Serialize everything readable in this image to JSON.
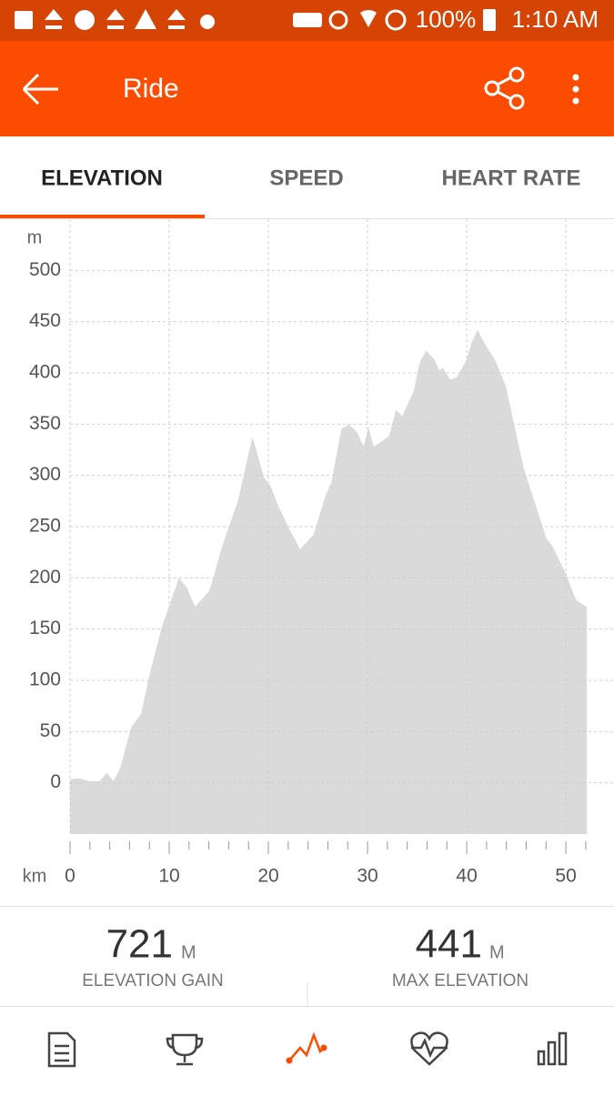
{
  "status_bar": {
    "battery": "100%",
    "time": "1:10 AM"
  },
  "app_bar": {
    "title": "Ride"
  },
  "tabs": [
    "ELEVATION",
    "SPEED",
    "HEART RATE"
  ],
  "chart_data": {
    "type": "area",
    "y_unit": "m",
    "x_unit": "km",
    "color": "#dadada",
    "x": [
      0,
      1,
      2,
      3,
      3.7,
      4.4,
      5.1,
      6.2,
      7.2,
      8.1,
      9.3,
      11,
      11.7,
      12.6,
      14.1,
      15.4,
      17,
      18.4,
      19.5,
      20.2,
      20.9,
      22.1,
      23.2,
      24.6,
      25.8,
      26.4,
      27.4,
      28.1,
      28.9,
      29.6,
      30.1,
      30.6,
      32.2,
      32.9,
      33.5,
      34.7,
      35.3,
      35.9,
      36.7,
      37.2,
      37.6,
      38.3,
      39,
      39.9,
      40.6,
      41.1,
      41.8,
      42.8,
      43.9,
      44.8,
      45.7,
      46.9,
      48,
      48.6,
      49.8,
      51,
      52.1
    ],
    "values": [
      3,
      4,
      1,
      1,
      9,
      1,
      14,
      54,
      67,
      107,
      152,
      199,
      191,
      171,
      187,
      231,
      276,
      336,
      298,
      289,
      271,
      247,
      227,
      242,
      280,
      293,
      345,
      349,
      342,
      327,
      345,
      327,
      338,
      363,
      357,
      382,
      410,
      421,
      413,
      402,
      404,
      393,
      395,
      410,
      431,
      441,
      428,
      413,
      387,
      347,
      307,
      271,
      238,
      231,
      207,
      178,
      171
    ],
    "xlim": [
      0,
      52.1
    ],
    "ylim": [
      -50,
      550
    ],
    "xticks": [
      0,
      10,
      20,
      30,
      40,
      50
    ],
    "xminorticks": [
      2,
      4,
      6,
      8,
      12,
      14,
      16,
      18,
      22,
      24,
      26,
      28,
      32,
      34,
      36,
      38,
      42,
      44,
      46,
      48,
      52
    ],
    "yticks": [
      0,
      50,
      100,
      150,
      200,
      250,
      300,
      350,
      400,
      450,
      500
    ],
    "grid": true
  },
  "stats": [
    {
      "value": 721,
      "unit": "M",
      "label": "ELEVATION GAIN"
    },
    {
      "value": 441,
      "unit": "M",
      "label": "MAX ELEVATION"
    }
  ]
}
